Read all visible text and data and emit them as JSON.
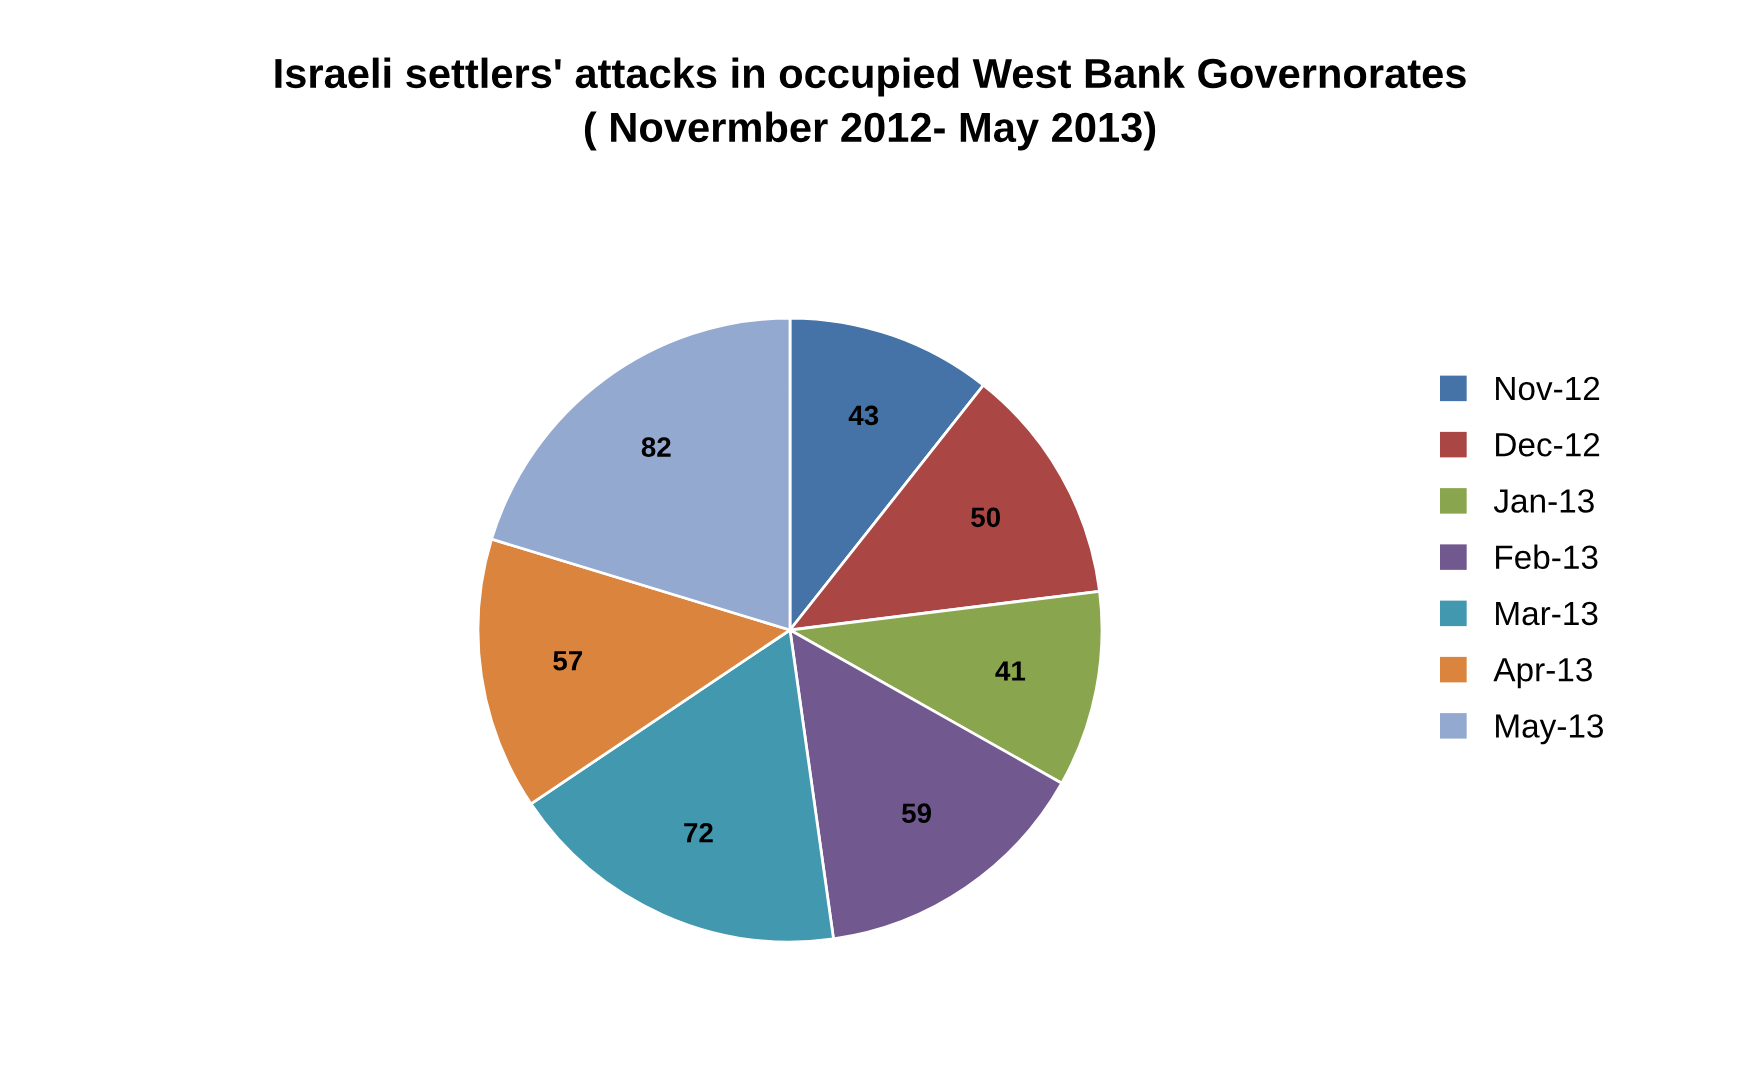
{
  "chart_data": {
    "type": "pie",
    "title": "Israeli settlers' attacks in occupied West Bank Governorates\n( Novermber 2012- May 2013)",
    "categories": [
      "Nov-12",
      "Dec-12",
      "Jan-13",
      "Feb-13",
      "Mar-13",
      "Apr-13",
      "May-13"
    ],
    "values": [
      43,
      50,
      41,
      59,
      72,
      57,
      82
    ],
    "colors": [
      "#4572a7",
      "#aa4643",
      "#89a54e",
      "#71588f",
      "#4198af",
      "#db843d",
      "#93a9cf"
    ],
    "data_labels": true,
    "legend": "right"
  }
}
